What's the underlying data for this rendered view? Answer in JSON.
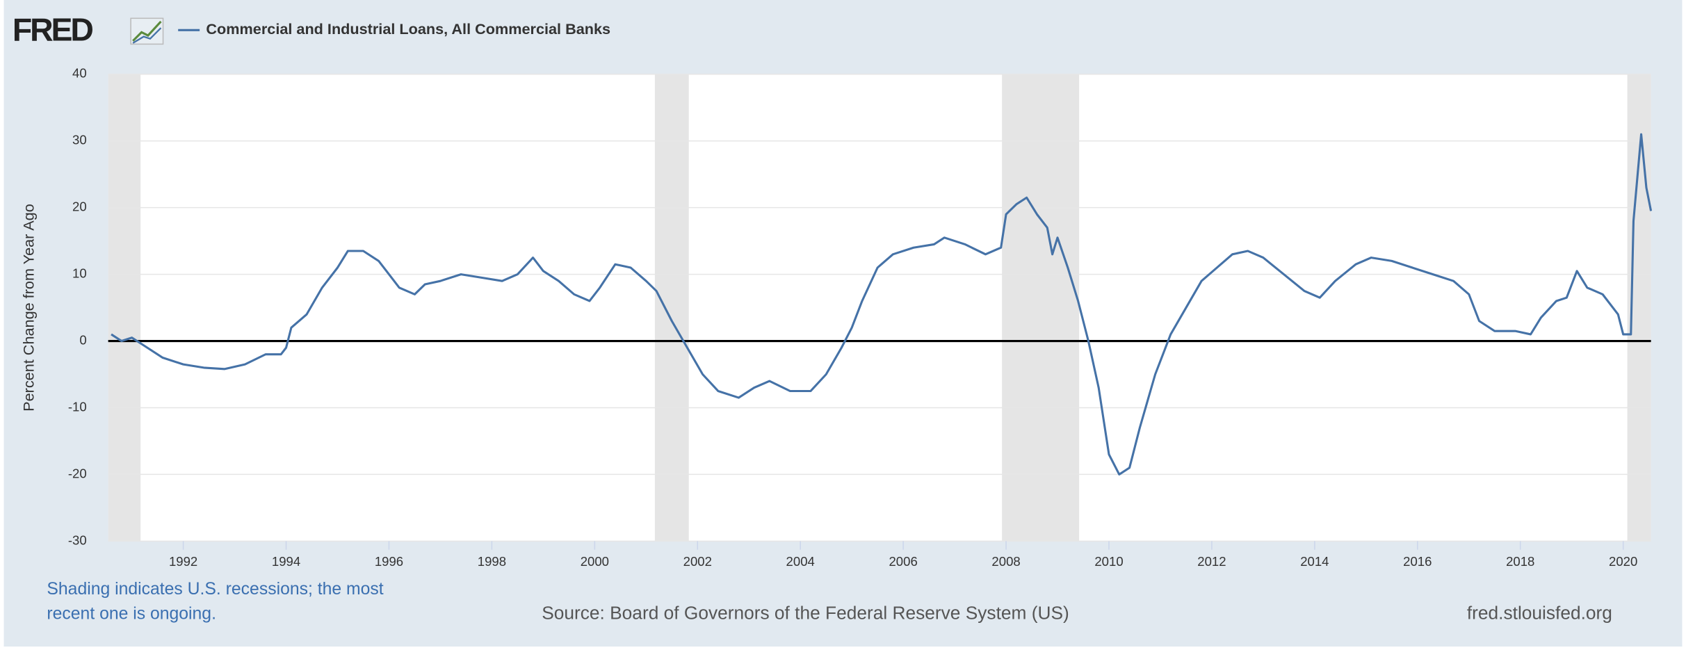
{
  "logo": "FRED",
  "chart_data": {
    "type": "line",
    "ylabel": "Percent Change from Year Ago",
    "series": [
      {
        "name": "Commercial and Industrial Loans, All Commercial Banks",
        "color": "#4572a7",
        "x": [
          1990.6,
          1990.8,
          1991.0,
          1991.3,
          1991.6,
          1992.0,
          1992.4,
          1992.8,
          1993.2,
          1993.6,
          1993.9,
          1994.0,
          1994.1,
          1994.4,
          1994.7,
          1995.0,
          1995.2,
          1995.5,
          1995.8,
          1996.0,
          1996.2,
          1996.5,
          1996.7,
          1997.0,
          1997.4,
          1997.8,
          1998.2,
          1998.5,
          1998.8,
          1999.0,
          1999.3,
          1999.6,
          1999.9,
          2000.1,
          2000.4,
          2000.7,
          2001.0,
          2001.2,
          2001.5,
          2001.8,
          2002.1,
          2002.4,
          2002.8,
          2003.1,
          2003.4,
          2003.8,
          2004.2,
          2004.5,
          2004.8,
          2005.0,
          2005.2,
          2005.5,
          2005.8,
          2006.2,
          2006.6,
          2006.8,
          2007.2,
          2007.6,
          2007.9,
          2008.0,
          2008.2,
          2008.4,
          2008.6,
          2008.8,
          2008.9,
          2009.0,
          2009.2,
          2009.4,
          2009.6,
          2009.8,
          2010.0,
          2010.2,
          2010.4,
          2010.6,
          2010.9,
          2011.2,
          2011.5,
          2011.8,
          2012.1,
          2012.4,
          2012.7,
          2013.0,
          2013.4,
          2013.8,
          2014.1,
          2014.4,
          2014.8,
          2015.1,
          2015.5,
          2015.9,
          2016.3,
          2016.7,
          2017.0,
          2017.2,
          2017.5,
          2017.9,
          2018.2,
          2018.4,
          2018.7,
          2018.9,
          2019.1,
          2019.3,
          2019.6,
          2019.9,
          2020.0,
          2020.15,
          2020.2,
          2020.35,
          2020.45,
          2020.54
        ],
        "values": [
          1,
          0,
          0.5,
          -1,
          -2.5,
          -3.5,
          -4,
          -4.2,
          -3.5,
          -2,
          -2,
          -1,
          2,
          4,
          8,
          11,
          13.5,
          13.5,
          12,
          10,
          8,
          7,
          8.5,
          9,
          10,
          9.5,
          9,
          10,
          12.5,
          10.5,
          9,
          7,
          6,
          8,
          11.5,
          11,
          9,
          7.5,
          3,
          -1,
          -5,
          -7.5,
          -8.5,
          -7,
          -6,
          -7.5,
          -7.5,
          -5,
          -1,
          2,
          6,
          11,
          13,
          14,
          14.5,
          15.5,
          14.5,
          13,
          14,
          19,
          20.5,
          21.5,
          19,
          17,
          13,
          15.5,
          11,
          6,
          0,
          -7,
          -17,
          -20,
          -19,
          -13,
          -5,
          1,
          5,
          9,
          11,
          13,
          13.5,
          12.5,
          10,
          7.5,
          6.5,
          9,
          11.5,
          12.5,
          12,
          11,
          10,
          9,
          7,
          3,
          1.5,
          1.5,
          1,
          3.5,
          6,
          6.5,
          10.5,
          8,
          7,
          4,
          1,
          1,
          18,
          31,
          23,
          19.5
        ]
      }
    ],
    "recessions": [
      [
        1990.54,
        1991.17
      ],
      [
        2001.17,
        2001.83
      ],
      [
        2007.92,
        2009.42
      ],
      [
        2020.08,
        2020.54
      ]
    ],
    "xlim": [
      1990.54,
      2020.54
    ],
    "xticks": [
      1992,
      1994,
      1996,
      1998,
      2000,
      2002,
      2004,
      2006,
      2008,
      2010,
      2012,
      2014,
      2016,
      2018,
      2020
    ],
    "ylim": [
      -30,
      40
    ],
    "yticks": [
      -30,
      -20,
      -10,
      0,
      10,
      20,
      30,
      40
    ],
    "grid": true,
    "note": "Shading indicates U.S. recessions; the most recent one is ongoing.",
    "source": "Source: Board of Governors of the Federal Reserve System (US)",
    "website": "fred.stlouisfed.org"
  }
}
